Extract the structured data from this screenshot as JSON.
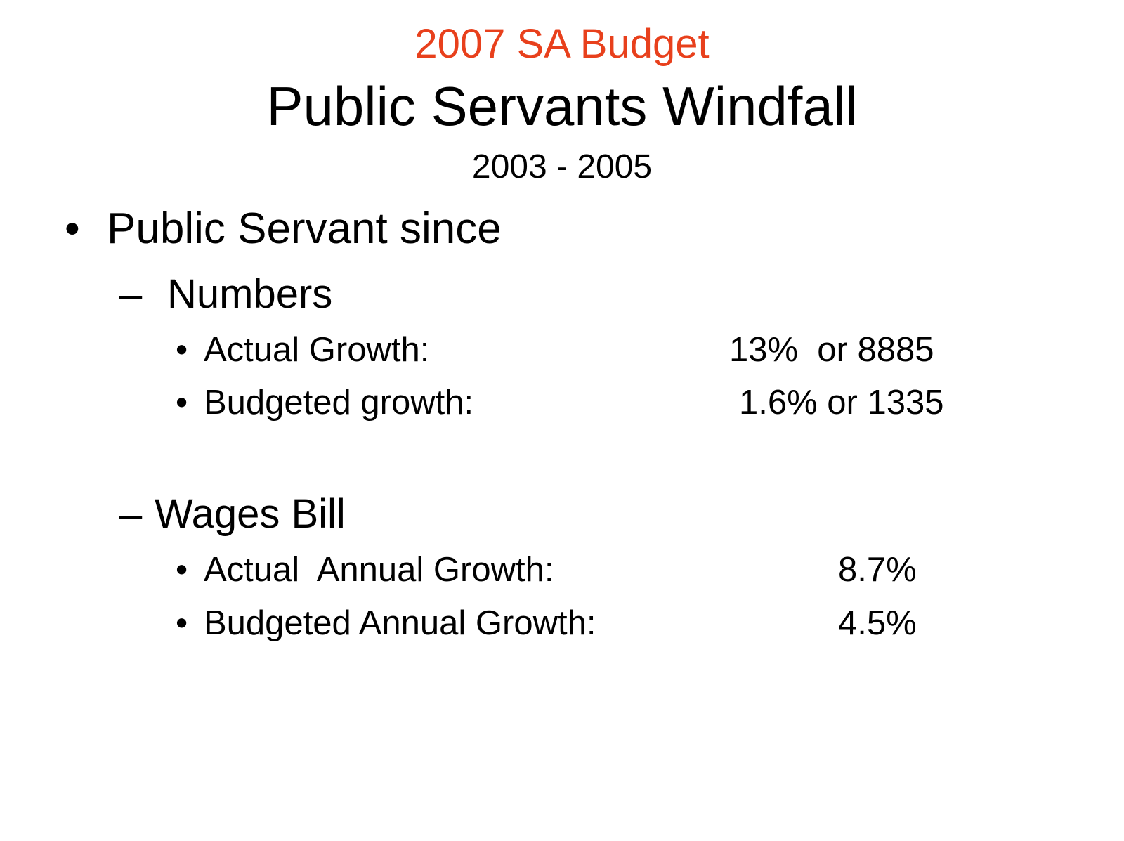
{
  "slide": {
    "kicker": "2007 SA Budget",
    "title": "Public Servants Windfall",
    "subtitle": "2003 - 2005",
    "accent_color": "#e8401c",
    "bullet": {
      "marker": "•",
      "text": "Public Servant since"
    },
    "sections": [
      {
        "marker": "–",
        "heading": "Numbers",
        "items": [
          {
            "marker": "•",
            "label": "Actual Growth:",
            "value": "13%  or 8885"
          },
          {
            "marker": "•",
            "label": "Budgeted growth:",
            "value": "1.6% or 1335"
          }
        ]
      },
      {
        "marker": "–",
        "heading": "Wages Bill",
        "items": [
          {
            "marker": "•",
            "label": "Actual  Annual Growth:",
            "value": "8.7%"
          },
          {
            "marker": "•",
            "label": "Budgeted Annual Growth:",
            "value": "4.5%"
          }
        ]
      }
    ]
  }
}
